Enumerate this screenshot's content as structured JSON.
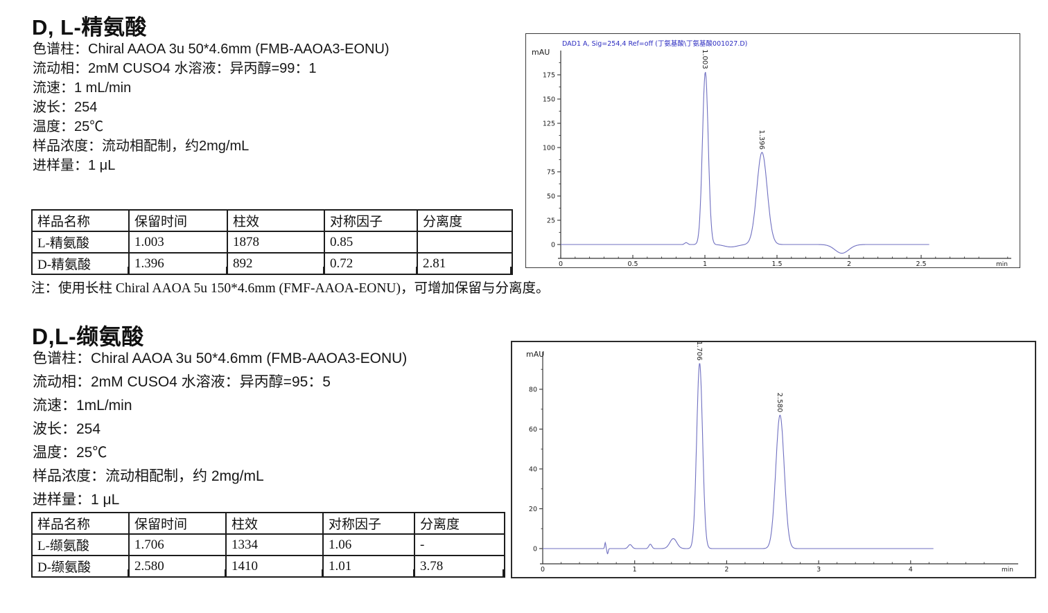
{
  "sections": [
    {
      "title": "D, L-精氨酸",
      "params": [
        "色谱柱：Chiral AAOA 3u 50*4.6mm (FMB-AAOA3-EONU)",
        "流动相：2mM CUSO4 水溶液：异丙醇=99：1",
        "流速：1 mL/min",
        "波长：254",
        "温度：25℃",
        "样品浓度：流动相配制，约2mg/mL",
        "进样量：1 μL"
      ],
      "table": {
        "headers": [
          "样品名称",
          "保留时间",
          "柱效",
          "对称因子",
          "分离度"
        ],
        "rows": [
          [
            "L-精氨酸",
            "1.003",
            "1878",
            "0.85",
            ""
          ],
          [
            "D-精氨酸",
            "1.396",
            "892",
            "0.72",
            "2.81"
          ]
        ]
      },
      "note": "注：使用长柱 Chiral AAOA 5u 150*4.6mm (FMF-AAOA-EONU)，可增加保留与分离度。"
    },
    {
      "title": "D,L-缬氨酸",
      "params": [
        "色谱柱：Chiral AAOA 3u 50*4.6mm (FMB-AAOA3-EONU)",
        "流动相：2mM CUSO4 水溶液：异丙醇=95：5",
        "流速：1mL/min",
        "波长：254",
        "温度：25℃",
        "样品浓度：流动相配制，约 2mg/mL",
        "进样量：1 μL"
      ],
      "table": {
        "headers": [
          "样品名称",
          "保留时间",
          "柱效",
          "对称因子",
          "分离度"
        ],
        "rows": [
          [
            "L-缬氨酸",
            "1.706",
            "1334",
            "1.06",
            "-"
          ],
          [
            "D-缬氨酸",
            "2.580",
            "1410",
            "1.01",
            "3.78"
          ]
        ]
      }
    }
  ],
  "chart_data": [
    {
      "type": "line",
      "title": "D,L-精氨酸 chromatogram",
      "header": "DAD1 A, Sig=254,4 Ref=off (丁氨基酸\\丁氨基酸001027.D)",
      "ylabel": "mAU",
      "x_unit": "min",
      "yticks": [
        0,
        25,
        50,
        75,
        100,
        125,
        150,
        175
      ],
      "xticks": [
        0,
        0.5,
        1,
        1.5,
        2,
        2.5
      ],
      "xtick_labels": [
        "0",
        "0.5",
        "1",
        "1.5",
        "2",
        "2.5"
      ],
      "xlim": [
        0,
        3.12
      ],
      "ylim": [
        -14,
        200
      ],
      "grid": false,
      "peaks": [
        {
          "rt": 1.003,
          "height_mau": 178,
          "label": "1.003"
        },
        {
          "rt": 1.396,
          "height_mau": 95,
          "label": "1.396"
        }
      ],
      "trace_components": [
        {
          "c": 0.87,
          "s": 0.01,
          "h": 2
        },
        {
          "c": 1.003,
          "s": 0.02,
          "h": 178
        },
        {
          "c": 1.18,
          "s": 0.045,
          "h": -2.5
        },
        {
          "c": 1.396,
          "s": 0.036,
          "h": 95
        },
        {
          "c": 1.95,
          "s": 0.048,
          "h": -9
        }
      ],
      "trace_end": 2.56,
      "trace_color": "#6f6fc0",
      "header_color": "#2a2ac0"
    },
    {
      "type": "line",
      "title": "D,L-缬氨酸 chromatogram",
      "header": "",
      "ylabel": "mAU",
      "x_unit": "min",
      "yticks": [
        0,
        20,
        40,
        60,
        80
      ],
      "xticks": [
        0,
        1,
        2,
        3,
        4
      ],
      "xtick_labels": [
        "0",
        "1",
        "2",
        "3",
        "4"
      ],
      "xlim": [
        0,
        5.17
      ],
      "ylim": [
        -8,
        104
      ],
      "grid": false,
      "peaks": [
        {
          "rt": 1.706,
          "height_mau": 93,
          "label": "1.706"
        },
        {
          "rt": 2.58,
          "height_mau": 67,
          "label": "2.580"
        }
      ],
      "trace_components": [
        {
          "c": 0.68,
          "s": 0.006,
          "h": 3
        },
        {
          "c": 0.705,
          "s": 0.007,
          "h": -2.6
        },
        {
          "c": 0.95,
          "s": 0.02,
          "h": 2
        },
        {
          "c": 1.17,
          "s": 0.016,
          "h": 2.2
        },
        {
          "c": 1.42,
          "s": 0.038,
          "h": 5
        },
        {
          "c": 1.706,
          "s": 0.032,
          "h": 93
        },
        {
          "c": 2.58,
          "s": 0.046,
          "h": 67
        }
      ],
      "trace_end": 4.25,
      "trace_color": "#6f6fc0",
      "header_color": "#2a2ac0"
    }
  ]
}
